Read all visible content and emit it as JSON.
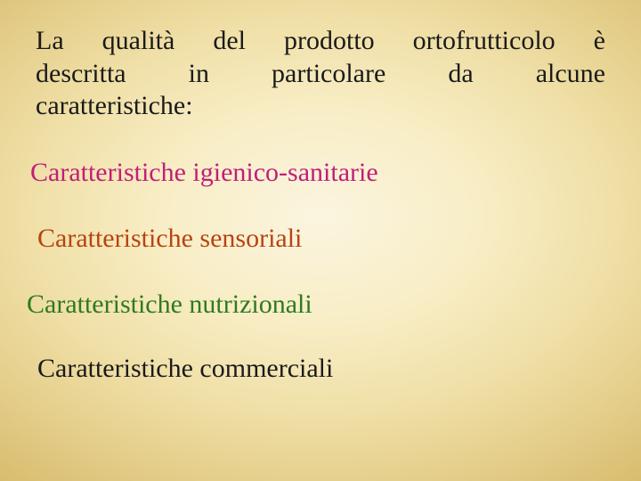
{
  "intro": {
    "line1": "La qualità del prodotto ortofrutticolo è",
    "line2": "descritta in particolare da alcune",
    "line3": "caratteristiche:",
    "color": "#1a1a1a",
    "fontsize": 30
  },
  "items": [
    {
      "text": "Caratteristiche igienico-sanitarie",
      "color": "#c11e78",
      "fontsize": 30
    },
    {
      "text": "Caratteristiche sensoriali",
      "color": "#b74410",
      "fontsize": 30
    },
    {
      "text": "Caratteristiche nutrizionali",
      "color": "#2f7a1f",
      "fontsize": 30
    },
    {
      "text": "Caratteristiche commerciali",
      "color": "#1a1a1a",
      "fontsize": 30
    }
  ],
  "background": {
    "inner": "#fbf5e0",
    "outer": "#be983f"
  }
}
